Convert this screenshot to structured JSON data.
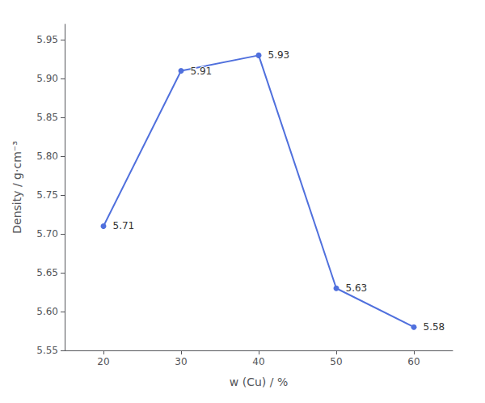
{
  "chart_data": {
    "type": "line",
    "x": [
      20,
      30,
      40,
      50,
      60
    ],
    "values": [
      5.71,
      5.91,
      5.93,
      5.63,
      5.58
    ],
    "xlabel": "w (Cu) / %",
    "ylabel": "Density / g·cm⁻³",
    "xlim": [
      15,
      65
    ],
    "ylim": [
      5.55,
      5.97
    ],
    "xticks": [
      20,
      30,
      40,
      50,
      60
    ],
    "yticks": [
      5.55,
      {
        "value": 5.6,
        "label": "5.60"
      },
      5.65,
      {
        "value": 5.7,
        "label": "5.70"
      },
      5.75,
      {
        "value": 5.8,
        "label": "5.80"
      },
      5.85,
      {
        "value": 5.9,
        "label": "5.90"
      },
      5.95
    ],
    "grid": false,
    "data_labels": true,
    "marker": "circle",
    "line_style": "solid"
  }
}
